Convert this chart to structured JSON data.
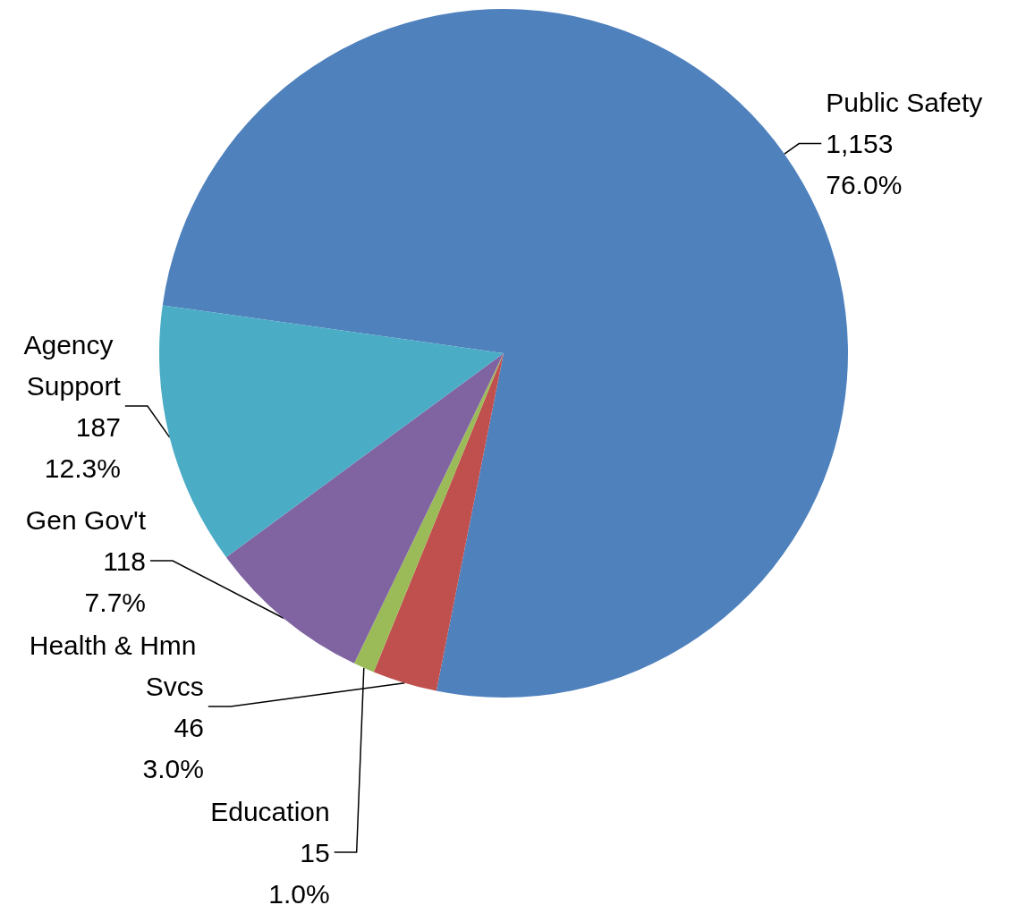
{
  "chart_data": {
    "type": "pie",
    "categories": [
      "Public Safety",
      "Health & Hmn Svcs",
      "Education",
      "Gen Gov't",
      "Agency Support"
    ],
    "values": [
      1153,
      46,
      15,
      118,
      187
    ],
    "colors": [
      "#4f81bd",
      "#c0504d",
      "#9bbb59",
      "#8064a2",
      "#4bacc6"
    ],
    "value_labels": [
      "1,153\n76.0%",
      "46\n3.0%",
      "15\n1.0%",
      "118\n7.7%",
      "187\n12.3%"
    ],
    "legend": false
  }
}
